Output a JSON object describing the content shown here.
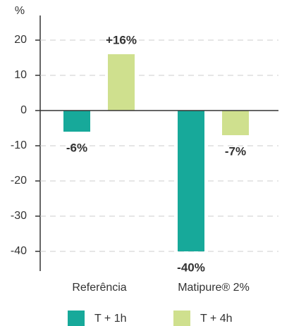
{
  "chart_data": {
    "type": "bar",
    "y_label": "%",
    "categories": [
      "Referência",
      "Matipure® 2%"
    ],
    "series": [
      {
        "name": "T + 1h",
        "color": "#17a99a",
        "values": [
          -6,
          -40
        ],
        "value_labels": [
          "-6%",
          "-40%"
        ]
      },
      {
        "name": "T + 4h",
        "color": "#cfe08e",
        "values": [
          16,
          -7
        ],
        "value_labels": [
          "+16%",
          "-7%"
        ]
      }
    ],
    "ylim": [
      -45,
      27
    ],
    "yticks": [
      20,
      10,
      0,
      -10,
      -20,
      -30,
      -40
    ],
    "grid": true
  }
}
